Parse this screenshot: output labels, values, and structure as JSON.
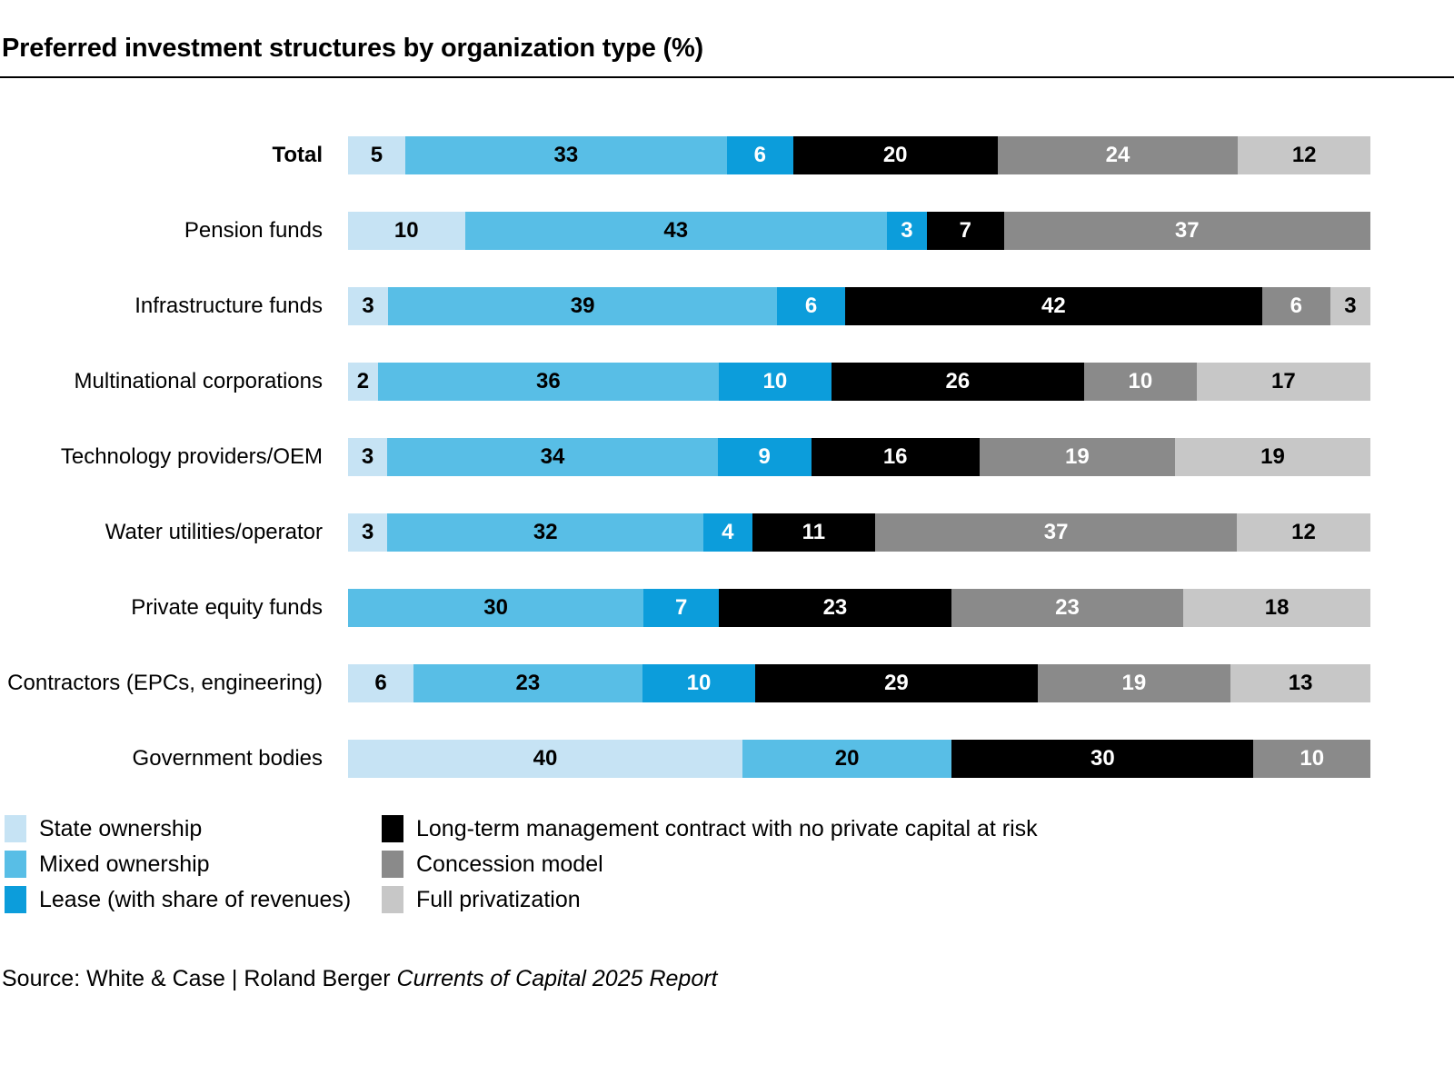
{
  "title": "Preferred investment structures by organization type (%)",
  "source_prefix": "Source: White & Case | Roland Berger",
  "source_italic": "Currents of Capital 2025 Report",
  "colors": {
    "state_ownership": "#C6E3F4",
    "mixed_ownership": "#58BEE6",
    "lease": "#0C9DDB",
    "management_contract": "#000000",
    "concession": "#8A8A8A",
    "full_privatization": "#C7C7C7"
  },
  "legend": {
    "left": [
      {
        "label": "State ownership",
        "color": "#C6E3F4"
      },
      {
        "label": "Mixed ownership",
        "color": "#58BEE6"
      },
      {
        "label": "Lease (with share of revenues)",
        "color": "#0C9DDB"
      }
    ],
    "right": [
      {
        "label": "Long-term management contract with no private capital at risk",
        "color": "#000000"
      },
      {
        "label": "Concession model",
        "color": "#8A8A8A"
      },
      {
        "label": "Full privatization",
        "color": "#C7C7C7"
      }
    ]
  },
  "chart_data": {
    "type": "bar",
    "orientation": "horizontal-stacked",
    "unit": "%",
    "emphasized_category": "Total",
    "grid": false,
    "legend_position": "bottom",
    "categories": [
      "Total",
      "Pension funds",
      "Infrastructure funds",
      "Multinational corporations",
      "Technology providers/OEM",
      "Water utilities/operator",
      "Private equity funds",
      "Contractors (EPCs, engineering)",
      "Government bodies"
    ],
    "series": [
      {
        "name": "State ownership",
        "color": "#C6E3F4",
        "text_color": "#000000",
        "values": [
          5,
          10,
          3,
          2,
          3,
          3,
          0,
          6,
          40
        ]
      },
      {
        "name": "Mixed ownership",
        "color": "#58BEE6",
        "text_color": "#000000",
        "values": [
          33,
          43,
          39,
          36,
          34,
          32,
          30,
          23,
          20
        ]
      },
      {
        "name": "Lease (with share of revenues)",
        "color": "#0C9DDB",
        "text_color": "#ffffff",
        "values": [
          6,
          3,
          6,
          10,
          9,
          4,
          7,
          10,
          0
        ]
      },
      {
        "name": "Long-term management contract with no private capital at risk",
        "color": "#000000",
        "text_color": "#ffffff",
        "values": [
          20,
          7,
          42,
          26,
          16,
          11,
          23,
          29,
          30
        ]
      },
      {
        "name": "Concession model",
        "color": "#8A8A8A",
        "text_color": "#ffffff",
        "values": [
          24,
          37,
          6,
          10,
          19,
          37,
          23,
          19,
          10
        ]
      },
      {
        "name": "Full privatization",
        "color": "#C7C7C7",
        "text_color": "#000000",
        "values": [
          12,
          0,
          3,
          17,
          19,
          12,
          18,
          13,
          0
        ]
      }
    ]
  }
}
